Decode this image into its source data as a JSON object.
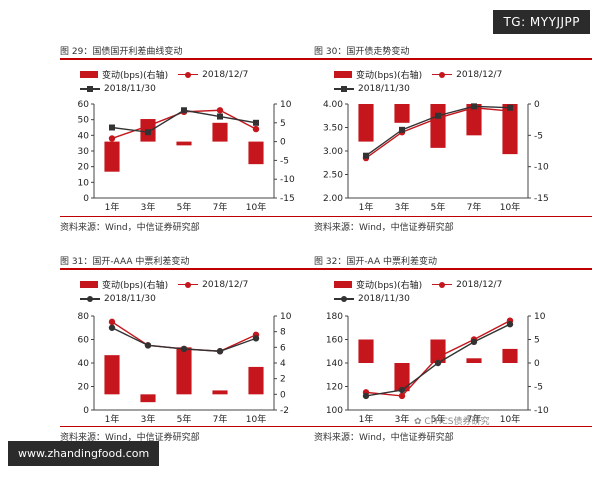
{
  "badges": {
    "tg": "TG: MYYJJPP",
    "site": "www.zhandingfood.com"
  },
  "watermark": {
    "text": "CITICS债券研究"
  },
  "colors": {
    "bar": "#c4161c",
    "line_1207": "#c4161c",
    "line_1130": "#333333",
    "rule": "#c00000"
  },
  "panels": [
    {
      "title": "图 29：国债国开利差曲线变动",
      "source": "资料来源：Wind，中信证券研究部",
      "legend": {
        "bar": "变动(bps)(右轴)",
        "line1": "2018/12/7",
        "line2": "2018/11/30"
      }
    },
    {
      "title": "图 30：国开债走势变动",
      "source": "资料来源：Wind，中信证券研究部",
      "legend": {
        "bar": "变动(bps)(右轴)",
        "line1": "2018/12/7",
        "line2": "2018/11/30"
      }
    },
    {
      "title": "图 31：国开-AAA 中票利差变动",
      "source": "资料来源：Wind，中信证券研究部",
      "legend": {
        "bar": "变动(bps)(右轴)",
        "line1": "2018/12/7",
        "line2": "2018/11/30"
      }
    },
    {
      "title": "图 32：国开-AA 中票利差变动",
      "source": "资料来源：Wind，中信证券研究部",
      "legend": {
        "bar": "变动(bps)(右轴)",
        "line1": "2018/12/7",
        "line2": "2018/11/30"
      }
    }
  ],
  "chart_data": [
    {
      "type": "bar",
      "categories": [
        "1年",
        "3年",
        "5年",
        "7年",
        "10年"
      ],
      "ylim": [
        0,
        60
      ],
      "yticks": [
        0,
        10,
        20,
        30,
        40,
        50,
        60
      ],
      "y2lim": [
        -15,
        10
      ],
      "y2ticks": [
        -15,
        -10,
        -5,
        0,
        5,
        10
      ],
      "bar_values": [
        -8,
        6,
        -1,
        5,
        -6
      ],
      "series": [
        {
          "name": "2018/12/7",
          "values": [
            38,
            46,
            55,
            56,
            44
          ]
        },
        {
          "name": "2018/11/30",
          "values": [
            45,
            42,
            56,
            52,
            48
          ]
        }
      ]
    },
    {
      "type": "bar",
      "categories": [
        "1年",
        "3年",
        "5年",
        "7年",
        "10年"
      ],
      "ylim": [
        2.0,
        4.0
      ],
      "yticks": [
        "2.00",
        "2.50",
        "3.00",
        "3.50",
        "4.00"
      ],
      "y2lim": [
        -15,
        0
      ],
      "y2ticks": [
        -15,
        -10,
        -5,
        0
      ],
      "bar_values": [
        -6,
        -3,
        -7,
        -5,
        -8
      ],
      "series": [
        {
          "name": "2018/12/7",
          "values": [
            2.85,
            3.4,
            3.7,
            3.92,
            3.85
          ]
        },
        {
          "name": "2018/11/30",
          "values": [
            2.9,
            3.45,
            3.75,
            3.95,
            3.92
          ]
        }
      ]
    },
    {
      "type": "bar",
      "categories": [
        "1年",
        "3年",
        "5年",
        "7年",
        "10年"
      ],
      "ylim": [
        0,
        80
      ],
      "yticks": [
        0,
        20,
        40,
        60,
        80
      ],
      "y2lim": [
        -2,
        10
      ],
      "y2ticks": [
        -2,
        0,
        2,
        4,
        6,
        8,
        10
      ],
      "bar_values": [
        5,
        -1,
        6,
        0.5,
        3.5
      ],
      "series": [
        {
          "name": "2018/12/7",
          "values": [
            75,
            55,
            52,
            50,
            64
          ]
        },
        {
          "name": "2018/11/30",
          "values": [
            70,
            55,
            52,
            50,
            61
          ]
        }
      ]
    },
    {
      "type": "bar",
      "categories": [
        "1年",
        "3年",
        "5年",
        "7年",
        "10年"
      ],
      "ylim": [
        100,
        180
      ],
      "yticks": [
        100,
        120,
        140,
        160,
        180
      ],
      "y2lim": [
        -10,
        10
      ],
      "y2ticks": [
        -10,
        -5,
        0,
        5,
        10
      ],
      "bar_values": [
        5,
        -6,
        5,
        1,
        3
      ],
      "series": [
        {
          "name": "2018/12/7",
          "values": [
            115,
            112,
            145,
            160,
            176
          ]
        },
        {
          "name": "2018/11/30",
          "values": [
            112,
            117,
            140,
            158,
            173
          ]
        }
      ]
    }
  ]
}
